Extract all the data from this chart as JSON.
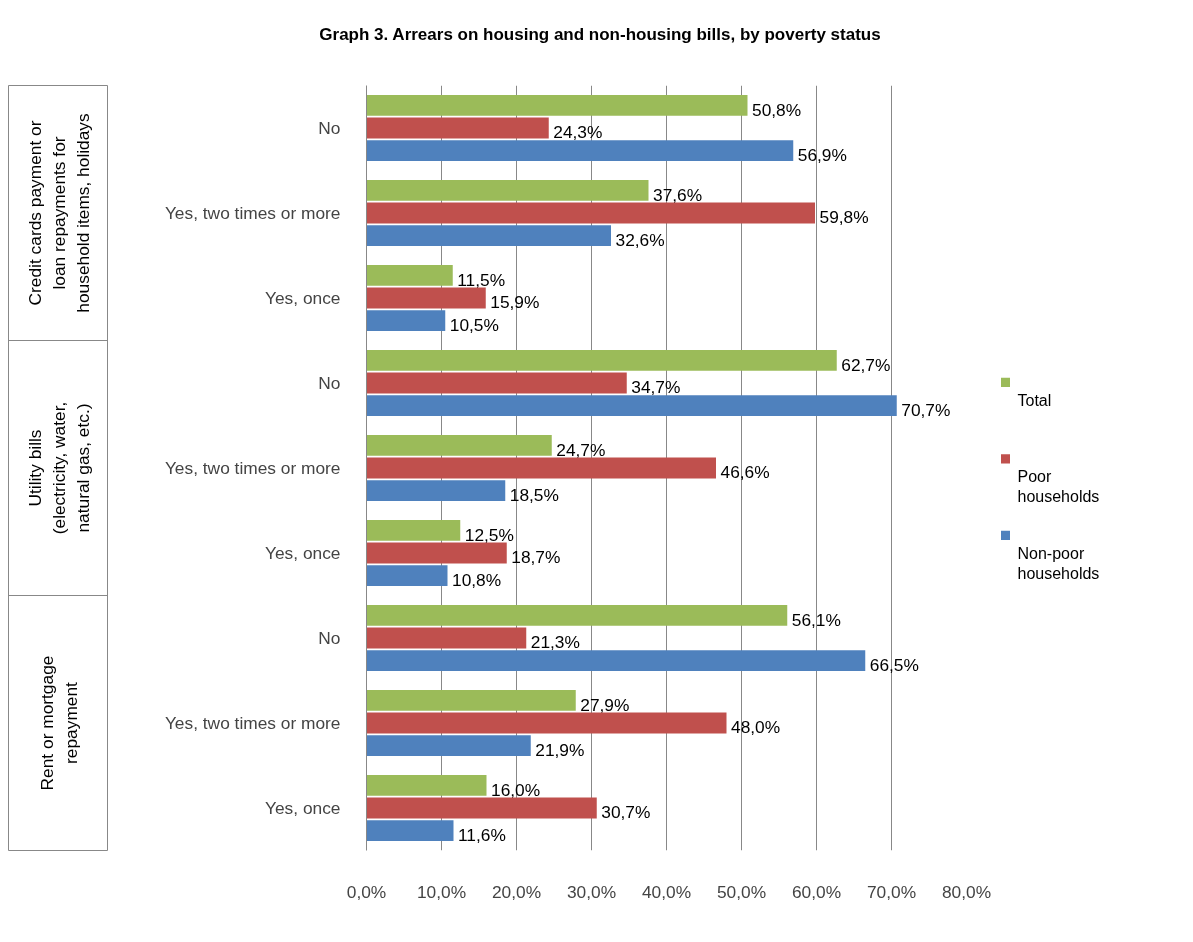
{
  "chart_data": {
    "type": "bar",
    "orientation": "horizontal",
    "title": "Graph 3. Arrears on housing and non-housing bills, by poverty status",
    "categories": [
      "No",
      "Yes, two times or more",
      "Yes, once",
      "No",
      "Yes, two times or more",
      "Yes, once",
      "No",
      "Yes, two times or more",
      "Yes, once"
    ],
    "annotations": [
      "Credit cards payment or loan repayments for household items, holidays",
      "Utility bills (electricity, water, natural gas, etc.)",
      "Rent or mortgage repayment"
    ],
    "series": [
      {
        "name": "Total",
        "color": "#9bbb59",
        "values": [
          50.8,
          37.6,
          11.5,
          62.7,
          24.7,
          12.5,
          56.1,
          27.9,
          16.0
        ],
        "value_labels": [
          "50,8%",
          "37,6%",
          "11,5%",
          "62,7%",
          "24,7%",
          "12,5%",
          "56,1%",
          "27,9%",
          "16,0%"
        ]
      },
      {
        "name": "Poor households",
        "color": "#c0504d",
        "values": [
          24.3,
          59.8,
          15.9,
          34.7,
          46.6,
          18.7,
          21.3,
          48.0,
          30.7
        ],
        "value_labels": [
          "24,3%",
          "59,8%",
          "15,9%",
          "34,7%",
          "46,6%",
          "18,7%",
          "21,3%",
          "48,0%",
          "30,7%"
        ]
      },
      {
        "name": "Non-poor households",
        "color": "#4f81bd",
        "values": [
          56.9,
          32.6,
          10.5,
          70.7,
          18.5,
          10.8,
          66.5,
          21.9,
          11.6
        ],
        "value_labels": [
          "56,9%",
          "32,6%",
          "10,5%",
          "70,7%",
          "18,5%",
          "10,8%",
          "66,5%",
          "21,9%",
          "11,6%"
        ]
      }
    ],
    "xlim": [
      0,
      80
    ],
    "xticks": [
      {
        "value": 0,
        "label": "0,0%"
      },
      {
        "value": 10,
        "label": "10,0%"
      },
      {
        "value": 20,
        "label": "20,0%"
      },
      {
        "value": 30,
        "label": "30,0%"
      },
      {
        "value": 40,
        "label": "40,0%"
      },
      {
        "value": 50,
        "label": "50,0%"
      },
      {
        "value": 60,
        "label": "60,0%"
      },
      {
        "value": 70,
        "label": "70,0%"
      },
      {
        "value": 80,
        "label": "80,0%"
      }
    ],
    "grid": "x",
    "legend": "right"
  }
}
